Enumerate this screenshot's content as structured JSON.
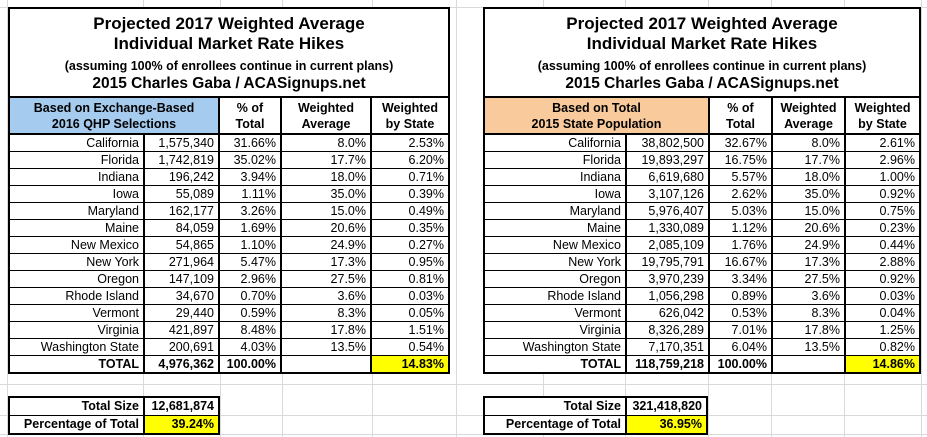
{
  "colors": {
    "header_blue": "#A5CBEE",
    "header_orange": "#F9CB9C",
    "highlight_yellow": "#FFFF00",
    "border_black": "#000000",
    "gridline_gray": "#D9D9D9"
  },
  "tables": [
    {
      "title_line1": "Projected 2017 Weighted Average",
      "title_line2": "Individual Market Rate Hikes",
      "subtitle": "(assuming 100% of enrollees continue in current plans)",
      "attribution": "2015 Charles Gaba / ACASignups.net",
      "group_header": "Based on Exchange-Based\n2016 QHP Selections",
      "group_header_color": "#A5CBEE",
      "col_headers": [
        "% of\nTotal",
        "Weighted\nAverage",
        "Weighted\nby State"
      ],
      "rows": [
        {
          "state": "California",
          "value": "1,575,340",
          "pct_of_total": "31.66%",
          "weighted_average": "8.0%",
          "weighted_by_state": "2.53%"
        },
        {
          "state": "Florida",
          "value": "1,742,819",
          "pct_of_total": "35.02%",
          "weighted_average": "17.7%",
          "weighted_by_state": "6.20%"
        },
        {
          "state": "Indiana",
          "value": "196,242",
          "pct_of_total": "3.94%",
          "weighted_average": "18.0%",
          "weighted_by_state": "0.71%"
        },
        {
          "state": "Iowa",
          "value": "55,089",
          "pct_of_total": "1.11%",
          "weighted_average": "35.0%",
          "weighted_by_state": "0.39%"
        },
        {
          "state": "Maryland",
          "value": "162,177",
          "pct_of_total": "3.26%",
          "weighted_average": "15.0%",
          "weighted_by_state": "0.49%"
        },
        {
          "state": "Maine",
          "value": "84,059",
          "pct_of_total": "1.69%",
          "weighted_average": "20.6%",
          "weighted_by_state": "0.35%"
        },
        {
          "state": "New Mexico",
          "value": "54,865",
          "pct_of_total": "1.10%",
          "weighted_average": "24.9%",
          "weighted_by_state": "0.27%"
        },
        {
          "state": "New York",
          "value": "271,964",
          "pct_of_total": "5.47%",
          "weighted_average": "17.3%",
          "weighted_by_state": "0.95%"
        },
        {
          "state": "Oregon",
          "value": "147,109",
          "pct_of_total": "2.96%",
          "weighted_average": "27.5%",
          "weighted_by_state": "0.81%"
        },
        {
          "state": "Rhode Island",
          "value": "34,670",
          "pct_of_total": "0.70%",
          "weighted_average": "3.6%",
          "weighted_by_state": "0.03%"
        },
        {
          "state": "Vermont",
          "value": "29,440",
          "pct_of_total": "0.59%",
          "weighted_average": "8.3%",
          "weighted_by_state": "0.05%"
        },
        {
          "state": "Virginia",
          "value": "421,897",
          "pct_of_total": "8.48%",
          "weighted_average": "17.8%",
          "weighted_by_state": "1.51%"
        },
        {
          "state": "Washington State",
          "value": "200,691",
          "pct_of_total": "4.03%",
          "weighted_average": "13.5%",
          "weighted_by_state": "0.54%"
        }
      ],
      "total": {
        "label": "TOTAL",
        "value": "4,976,362",
        "pct_of_total": "100.00%",
        "weighted_average": "",
        "weighted_by_state": "14.83%"
      },
      "footer": {
        "size_label": "Total Size",
        "size_value": "12,681,874",
        "pct_label": "Percentage of Total",
        "pct_value": "39.24%"
      }
    },
    {
      "title_line1": "Projected 2017 Weighted Average",
      "title_line2": "Individual Market Rate Hikes",
      "subtitle": "(assuming 100% of enrollees continue in current plans)",
      "attribution": "2015 Charles Gaba / ACASignups.net",
      "group_header": "Based on Total\n2015 State Population",
      "group_header_color": "#F9CB9C",
      "col_headers": [
        "% of\nTotal",
        "Weighted\nAverage",
        "Weighted\nby State"
      ],
      "rows": [
        {
          "state": "California",
          "value": "38,802,500",
          "pct_of_total": "32.67%",
          "weighted_average": "8.0%",
          "weighted_by_state": "2.61%"
        },
        {
          "state": "Florida",
          "value": "19,893,297",
          "pct_of_total": "16.75%",
          "weighted_average": "17.7%",
          "weighted_by_state": "2.96%"
        },
        {
          "state": "Indiana",
          "value": "6,619,680",
          "pct_of_total": "5.57%",
          "weighted_average": "18.0%",
          "weighted_by_state": "1.00%"
        },
        {
          "state": "Iowa",
          "value": "3,107,126",
          "pct_of_total": "2.62%",
          "weighted_average": "35.0%",
          "weighted_by_state": "0.92%"
        },
        {
          "state": "Maryland",
          "value": "5,976,407",
          "pct_of_total": "5.03%",
          "weighted_average": "15.0%",
          "weighted_by_state": "0.75%"
        },
        {
          "state": "Maine",
          "value": "1,330,089",
          "pct_of_total": "1.12%",
          "weighted_average": "20.6%",
          "weighted_by_state": "0.23%"
        },
        {
          "state": "New Mexico",
          "value": "2,085,109",
          "pct_of_total": "1.76%",
          "weighted_average": "24.9%",
          "weighted_by_state": "0.44%"
        },
        {
          "state": "New York",
          "value": "19,795,791",
          "pct_of_total": "16.67%",
          "weighted_average": "17.3%",
          "weighted_by_state": "2.88%"
        },
        {
          "state": "Oregon",
          "value": "3,970,239",
          "pct_of_total": "3.34%",
          "weighted_average": "27.5%",
          "weighted_by_state": "0.92%"
        },
        {
          "state": "Rhode Island",
          "value": "1,056,298",
          "pct_of_total": "0.89%",
          "weighted_average": "3.6%",
          "weighted_by_state": "0.03%"
        },
        {
          "state": "Vermont",
          "value": "626,042",
          "pct_of_total": "0.53%",
          "weighted_average": "8.3%",
          "weighted_by_state": "0.04%"
        },
        {
          "state": "Virginia",
          "value": "8,326,289",
          "pct_of_total": "7.01%",
          "weighted_average": "17.8%",
          "weighted_by_state": "1.25%"
        },
        {
          "state": "Washington State",
          "value": "7,170,351",
          "pct_of_total": "6.04%",
          "weighted_average": "13.5%",
          "weighted_by_state": "0.82%"
        }
      ],
      "total": {
        "label": "TOTAL",
        "value": "118,759,218",
        "pct_of_total": "100.00%",
        "weighted_average": "",
        "weighted_by_state": "14.86%"
      },
      "footer": {
        "size_label": "Total Size",
        "size_value": "321,418,820",
        "pct_label": "Percentage of Total",
        "pct_value": "36.95%"
      }
    }
  ]
}
